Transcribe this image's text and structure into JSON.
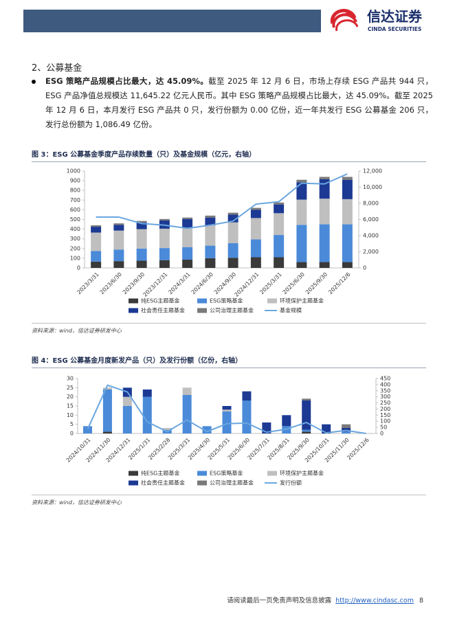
{
  "header": {
    "logo_name": "信达证券",
    "logo_subtitle": "CINDA SECURITIES"
  },
  "section_title": "2、公募基金",
  "bullet": {
    "lead": "ESG 策略产品规模占比最大，达 45.09%。",
    "text": "截至 2025 年 12 月 6 日，市场上存续 ESG 产品共 944 只，ESG 产品净值总规模达 11,645.22 亿元人民币。其中 ESG 策略产品规模占比最大，达 45.09%。截至 2025 年 12 月 6 日，本月发行 ESG 产品共 0 只，发行份额为 0.00 亿份，近一年共发行 ESG 公募基金 206 只，发行总份额为 1,086.49 亿份。"
  },
  "figures": [
    {
      "caption": "图 3：ESG 公募基金季度产品存续数量（只）及基金规模（亿元，右轴）",
      "source": "资料来源：wind，信达证券研发中心"
    },
    {
      "caption": "图 4：ESG 公募基金月度新发产品（只）及发行份额（亿份，右轴）",
      "source": "资料来源：wind，信达证券研发中心"
    }
  ],
  "chart_data": [
    {
      "type": "bar",
      "stacked": true,
      "categories": [
        "2023/3/31",
        "2023/6/30",
        "2023/9/30",
        "2023/12/31",
        "2024/3/31",
        "2024/6/30",
        "2024/9/30",
        "2024/12/31",
        "2025/3/31",
        "2025/6/30",
        "2025/9/30",
        "2025/12/6"
      ],
      "series": [
        {
          "name": "纯ESG主题基金",
          "color": "#3a3a3a",
          "values": [
            65,
            70,
            75,
            80,
            85,
            100,
            105,
            110,
            110,
            60,
            60,
            60
          ]
        },
        {
          "name": "ESG策略基金",
          "color": "#4a8ad9",
          "values": [
            110,
            120,
            125,
            125,
            130,
            130,
            150,
            185,
            230,
            385,
            390,
            390
          ]
        },
        {
          "name": "环境保护主题基金",
          "color": "#bfbfbf",
          "values": [
            190,
            195,
            200,
            200,
            200,
            210,
            215,
            220,
            225,
            260,
            265,
            260
          ]
        },
        {
          "name": "社会责任主题基金",
          "color": "#1c3a94",
          "values": [
            60,
            60,
            70,
            85,
            90,
            80,
            80,
            85,
            90,
            180,
            200,
            200
          ]
        },
        {
          "name": "公司治理主题基金",
          "color": "#7a7a7a",
          "values": [
            15,
            15,
            15,
            15,
            15,
            20,
            20,
            20,
            20,
            25,
            25,
            30
          ]
        },
        {
          "name": "基金规模",
          "type": "line",
          "axis": "y2",
          "color": "#6aa6de",
          "values": [
            6300,
            6300,
            5500,
            5300,
            4900,
            5300,
            5800,
            7900,
            8200,
            10500,
            10400,
            11645.22
          ]
        }
      ],
      "ylim": [
        0,
        1000
      ],
      "yticks": [
        0,
        100,
        200,
        300,
        400,
        500,
        600,
        700,
        800,
        900,
        1000
      ],
      "y2lim": [
        0,
        12000
      ],
      "y2ticks": [
        0,
        {
          "value": 2000,
          "label": "2,000"
        },
        {
          "value": 4000,
          "label": "4,000"
        },
        {
          "value": 6000,
          "label": "6,000"
        },
        {
          "value": 8000,
          "label": "8,000"
        },
        {
          "value": 10000,
          "label": "10,000"
        },
        {
          "value": 12000,
          "label": "12,000"
        }
      ],
      "grid": false
    },
    {
      "type": "bar",
      "stacked": true,
      "categories": [
        "2024/10/31",
        "2024/11/30",
        "2024/12/31",
        "2025/1/31",
        "2025/2/28",
        "2025/3/31",
        "2025/4/30",
        "2025/5/31",
        "2025/6/30",
        "2025/7/31",
        "2025/8/31",
        "2025/9/30",
        "2025/10/31",
        "2025/11/30",
        "2025/12/6"
      ],
      "series": [
        {
          "name": "纯ESG主题基金",
          "color": "#3a3a3a",
          "values": [
            0,
            1,
            0,
            0,
            0,
            0,
            0,
            0,
            0,
            0,
            0,
            1,
            0,
            0,
            0
          ]
        },
        {
          "name": "ESG策略基金",
          "color": "#4a8ad9",
          "values": [
            4,
            23,
            15,
            20,
            2,
            21,
            4,
            12,
            18,
            0,
            4,
            1,
            0,
            1,
            0
          ]
        },
        {
          "name": "环境保护主题基金",
          "color": "#bfbfbf",
          "values": [
            0,
            1,
            5,
            0,
            1,
            4,
            0,
            1,
            0,
            0,
            0,
            0,
            0,
            0,
            0
          ]
        },
        {
          "name": "社会责任主题基金",
          "color": "#1c3a94",
          "values": [
            0,
            0,
            5,
            4,
            0,
            0,
            0,
            2,
            5,
            6,
            6,
            16,
            5,
            2,
            0
          ]
        },
        {
          "name": "公司治理主题基金",
          "color": "#7a7a7a",
          "values": [
            0,
            0,
            0,
            0,
            0,
            0,
            0,
            0,
            0,
            0,
            0,
            1,
            0,
            2,
            0
          ]
        },
        {
          "name": "发行份额",
          "type": "line",
          "axis": "y2",
          "color": "#6aa6de",
          "values": [
            35,
            395,
            340,
            95,
            15,
            110,
            15,
            80,
            85,
            10,
            35,
            90,
            5,
            25,
            0
          ]
        }
      ],
      "ylim": [
        0,
        30
      ],
      "yticks": [
        0,
        5,
        10,
        15,
        20,
        25,
        30
      ],
      "y2lim": [
        0,
        450
      ],
      "y2ticks": [
        0,
        50,
        100,
        150,
        200,
        250,
        300,
        350,
        400,
        450
      ],
      "grid": false
    }
  ],
  "footer": {
    "disclaimer": "请阅读最后一页免责声明及信息披露",
    "url": "http://www.cindasc.com",
    "page": "8"
  }
}
